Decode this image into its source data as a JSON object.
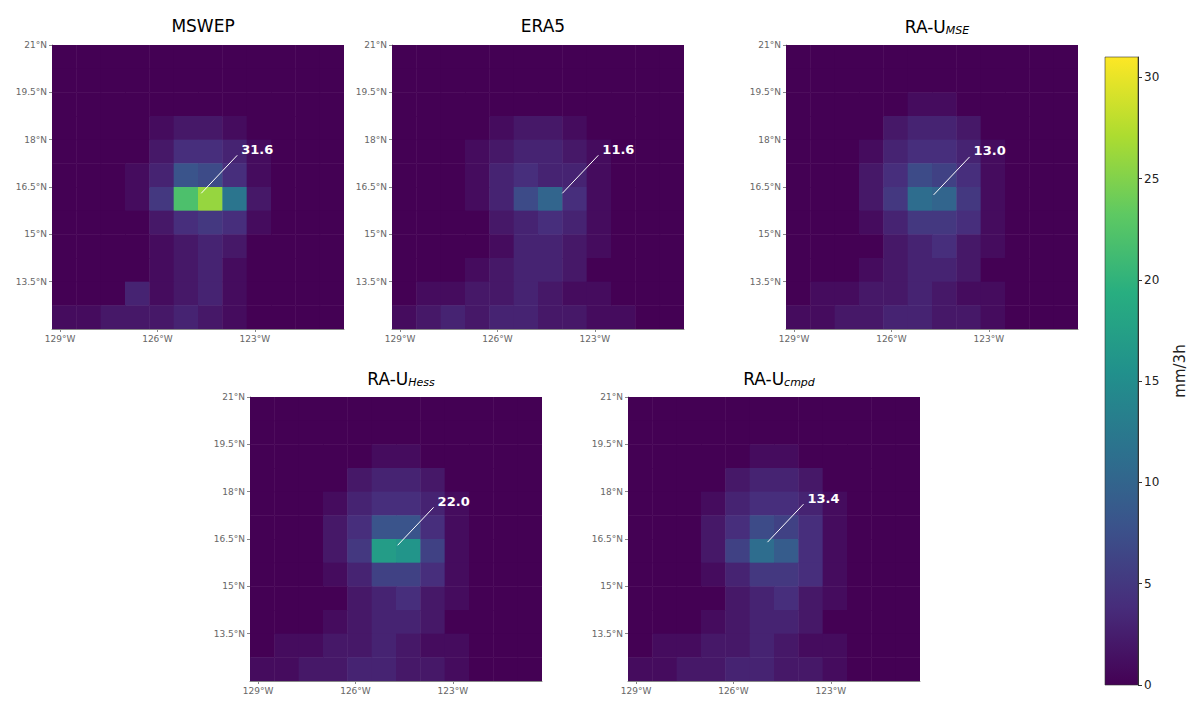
{
  "chart_data": [
    {
      "type": "heatmap",
      "title": "MSWEP",
      "xlim": [
        -129.25,
        -120.25
      ],
      "ylim": [
        12,
        21
      ],
      "xticks": [
        {
          "value": -129,
          "label": "129°W"
        },
        {
          "value": -126,
          "label": "126°W"
        },
        {
          "value": -123,
          "label": "123°W"
        }
      ],
      "yticks": [
        {
          "value": 13.5,
          "label": "13.5°N"
        },
        {
          "value": 15,
          "label": "15°N"
        },
        {
          "value": 16.5,
          "label": "16.5°N"
        },
        {
          "value": 18,
          "label": "18°N"
        },
        {
          "value": 19.5,
          "label": "19.5°N"
        },
        {
          "value": 21,
          "label": "21°N"
        }
      ],
      "lon_edges": [
        -129.25,
        -128.5,
        -127.75,
        -127,
        -126.25,
        -125.5,
        -124.75,
        -124,
        -123.25,
        -122.5,
        -121.75,
        -121,
        -120.25
      ],
      "lat_edges": [
        21,
        20.25,
        19.5,
        18.75,
        18,
        17.25,
        16.5,
        15.75,
        15,
        14.25,
        13.5,
        12.75,
        12
      ],
      "cells": [
        [
          0,
          0,
          0,
          0,
          0,
          0,
          0,
          0,
          0,
          0,
          0,
          0
        ],
        [
          0,
          0,
          0,
          0,
          0,
          0,
          0,
          0,
          0,
          0,
          0,
          0
        ],
        [
          0,
          0,
          0,
          0,
          0,
          0,
          0,
          0,
          0,
          0,
          0,
          0
        ],
        [
          0,
          0,
          0,
          0,
          1,
          2,
          2,
          1,
          0,
          0,
          0,
          0
        ],
        [
          0,
          0,
          0,
          0,
          2,
          4,
          4,
          3,
          1,
          0,
          0,
          0
        ],
        [
          0,
          0,
          0,
          1,
          3,
          8,
          7,
          4,
          1,
          0,
          0,
          0
        ],
        [
          0,
          0,
          0,
          1,
          5,
          22,
          26,
          12,
          2,
          0,
          0,
          0
        ],
        [
          0,
          0,
          0,
          0,
          2,
          4,
          5,
          4,
          1,
          0,
          0,
          0
        ],
        [
          0,
          0,
          0,
          0,
          1,
          2,
          3,
          2,
          0,
          0,
          0,
          0
        ],
        [
          0,
          0,
          0,
          0,
          1,
          2,
          3,
          1,
          0,
          0,
          0,
          0
        ],
        [
          0,
          0,
          0,
          3,
          1,
          2,
          3,
          1,
          0,
          0,
          0,
          0
        ],
        [
          1,
          1,
          2,
          2,
          2,
          3,
          2,
          1,
          0,
          0,
          0,
          0
        ]
      ],
      "annotation": {
        "text": "31.6",
        "lon": -124.65,
        "lat": 16.3
      }
    },
    {
      "type": "heatmap",
      "title": "ERA5",
      "xlim": [
        -129.25,
        -120.25
      ],
      "ylim": [
        12,
        21
      ],
      "xticks": [
        {
          "value": -129,
          "label": "129°W"
        },
        {
          "value": -126,
          "label": "126°W"
        },
        {
          "value": -123,
          "label": "123°W"
        }
      ],
      "yticks": [
        {
          "value": 13.5,
          "label": "13.5°N"
        },
        {
          "value": 15,
          "label": "15°N"
        },
        {
          "value": 16.5,
          "label": "16.5°N"
        },
        {
          "value": 18,
          "label": "18°N"
        },
        {
          "value": 19.5,
          "label": "19.5°N"
        },
        {
          "value": 21,
          "label": "21°N"
        }
      ],
      "lon_edges": [
        -129.25,
        -128.5,
        -127.75,
        -127,
        -126.25,
        -125.5,
        -124.75,
        -124,
        -123.25,
        -122.5,
        -121.75,
        -121,
        -120.25
      ],
      "lat_edges": [
        21,
        20.25,
        19.5,
        18.75,
        18,
        17.25,
        16.5,
        15.75,
        15,
        14.25,
        13.5,
        12.75,
        12
      ],
      "cells": [
        [
          0,
          0,
          0,
          0,
          0,
          0,
          0,
          0,
          0,
          0,
          0,
          0
        ],
        [
          0,
          0,
          0,
          0,
          0,
          0,
          0,
          0,
          0,
          0,
          0,
          0
        ],
        [
          0,
          0,
          0,
          0,
          0,
          0,
          0,
          0,
          0,
          0,
          0,
          0
        ],
        [
          0,
          0,
          0,
          0,
          1,
          2,
          2,
          1,
          0,
          0,
          0,
          0
        ],
        [
          0,
          0,
          0,
          1,
          2,
          3,
          3,
          2,
          1,
          0,
          0,
          0
        ],
        [
          0,
          0,
          0,
          1,
          3,
          4,
          3,
          3,
          1,
          0,
          0,
          0
        ],
        [
          0,
          0,
          0,
          1,
          3,
          7,
          10,
          4,
          1,
          0,
          0,
          0
        ],
        [
          0,
          0,
          0,
          0,
          2,
          3,
          4,
          3,
          1,
          0,
          0,
          0
        ],
        [
          0,
          0,
          0,
          0,
          1,
          3,
          3,
          2,
          1,
          0,
          0,
          0
        ],
        [
          0,
          0,
          0,
          1,
          2,
          3,
          3,
          2,
          0,
          0,
          0,
          0
        ],
        [
          0,
          1,
          1,
          2,
          2,
          3,
          2,
          1,
          1,
          0,
          0,
          0
        ],
        [
          1,
          2,
          3,
          2,
          3,
          3,
          2,
          2,
          1,
          1,
          0,
          0
        ]
      ],
      "annotation": {
        "text": "11.6",
        "lon": -124.0,
        "lat": 16.3
      }
    },
    {
      "type": "heatmap",
      "title": "RA-U",
      "subscript": "MSE",
      "xlim": [
        -129.25,
        -120.25
      ],
      "ylim": [
        12,
        21
      ],
      "xticks": [
        {
          "value": -129,
          "label": "129°W"
        },
        {
          "value": -126,
          "label": "126°W"
        },
        {
          "value": -123,
          "label": "123°W"
        }
      ],
      "yticks": [
        {
          "value": 13.5,
          "label": "13.5°N"
        },
        {
          "value": 15,
          "label": "15°N"
        },
        {
          "value": 16.5,
          "label": "16.5°N"
        },
        {
          "value": 18,
          "label": "18°N"
        },
        {
          "value": 19.5,
          "label": "19.5°N"
        },
        {
          "value": 21,
          "label": "21°N"
        }
      ],
      "lon_edges": [
        -129.25,
        -128.5,
        -127.75,
        -127,
        -126.25,
        -125.5,
        -124.75,
        -124,
        -123.25,
        -122.5,
        -121.75,
        -121,
        -120.25
      ],
      "lat_edges": [
        21,
        20.25,
        19.5,
        18.75,
        18,
        17.25,
        16.5,
        15.75,
        15,
        14.25,
        13.5,
        12.75,
        12
      ],
      "cells": [
        [
          0,
          0,
          0,
          0,
          0,
          0,
          0,
          0,
          0,
          0,
          0,
          0
        ],
        [
          0,
          0,
          0,
          0,
          0,
          0,
          0,
          0,
          0,
          0,
          0,
          0
        ],
        [
          0,
          0,
          0,
          0,
          0,
          1,
          1,
          0,
          0,
          0,
          0,
          0
        ],
        [
          0,
          0,
          0,
          0,
          2,
          3,
          3,
          2,
          0,
          0,
          0,
          0
        ],
        [
          0,
          0,
          0,
          1,
          3,
          4,
          4,
          3,
          1,
          0,
          0,
          0
        ],
        [
          0,
          0,
          0,
          2,
          4,
          7,
          6,
          4,
          1,
          0,
          0,
          0
        ],
        [
          0,
          0,
          0,
          2,
          5,
          11,
          10,
          5,
          1,
          0,
          0,
          0
        ],
        [
          0,
          0,
          0,
          1,
          3,
          5,
          5,
          4,
          1,
          0,
          0,
          0
        ],
        [
          0,
          0,
          0,
          0,
          2,
          3,
          4,
          2,
          1,
          0,
          0,
          0
        ],
        [
          0,
          0,
          0,
          1,
          2,
          3,
          3,
          2,
          0,
          0,
          0,
          0
        ],
        [
          0,
          1,
          1,
          2,
          2,
          3,
          2,
          1,
          1,
          0,
          0,
          0
        ],
        [
          1,
          1,
          2,
          2,
          3,
          3,
          2,
          2,
          1,
          0,
          0,
          0
        ]
      ],
      "annotation": {
        "text": "13.0",
        "lon": -124.7,
        "lat": 16.25
      }
    },
    {
      "type": "heatmap",
      "title": "RA-U",
      "subscript": "Hess",
      "xlim": [
        -129.25,
        -120.25
      ],
      "ylim": [
        12,
        21
      ],
      "xticks": [
        {
          "value": -129,
          "label": "129°W"
        },
        {
          "value": -126,
          "label": "126°W"
        },
        {
          "value": -123,
          "label": "123°W"
        }
      ],
      "yticks": [
        {
          "value": 13.5,
          "label": "13.5°N"
        },
        {
          "value": 15,
          "label": "15°N"
        },
        {
          "value": 16.5,
          "label": "16.5°N"
        },
        {
          "value": 18,
          "label": "18°N"
        },
        {
          "value": 19.5,
          "label": "19.5°N"
        },
        {
          "value": 21,
          "label": "21°N"
        }
      ],
      "lon_edges": [
        -129.25,
        -128.5,
        -127.75,
        -127,
        -126.25,
        -125.5,
        -124.75,
        -124,
        -123.25,
        -122.5,
        -121.75,
        -121,
        -120.25
      ],
      "lat_edges": [
        21,
        20.25,
        19.5,
        18.75,
        18,
        17.25,
        16.5,
        15.75,
        15,
        14.25,
        13.5,
        12.75,
        12
      ],
      "cells": [
        [
          0,
          0,
          0,
          0,
          0,
          0,
          0,
          0,
          0,
          0,
          0,
          0
        ],
        [
          0,
          0,
          0,
          0,
          0,
          0,
          0,
          0,
          0,
          0,
          0,
          0
        ],
        [
          0,
          0,
          0,
          0,
          0,
          1,
          1,
          0,
          0,
          0,
          0,
          0
        ],
        [
          0,
          0,
          0,
          0,
          2,
          3,
          3,
          2,
          0,
          0,
          0,
          0
        ],
        [
          0,
          0,
          0,
          1,
          3,
          4,
          4,
          3,
          1,
          0,
          0,
          0
        ],
        [
          0,
          0,
          0,
          2,
          4,
          8,
          8,
          4,
          1,
          0,
          0,
          0
        ],
        [
          0,
          0,
          0,
          2,
          5,
          17,
          16,
          6,
          1,
          0,
          0,
          0
        ],
        [
          0,
          0,
          0,
          1,
          3,
          6,
          6,
          4,
          1,
          0,
          0,
          0
        ],
        [
          0,
          0,
          0,
          0,
          2,
          3,
          4,
          2,
          1,
          0,
          0,
          0
        ],
        [
          0,
          0,
          0,
          1,
          2,
          3,
          3,
          2,
          0,
          0,
          0,
          0
        ],
        [
          0,
          1,
          1,
          2,
          2,
          3,
          2,
          1,
          1,
          0,
          0,
          0
        ],
        [
          1,
          1,
          2,
          2,
          3,
          3,
          2,
          2,
          1,
          0,
          0,
          0
        ]
      ],
      "annotation": {
        "text": "22.0",
        "lon": -124.7,
        "lat": 16.3
      }
    },
    {
      "type": "heatmap",
      "title": "RA-U",
      "subscript": "cmpd",
      "xlim": [
        -129.25,
        -120.25
      ],
      "ylim": [
        12,
        21
      ],
      "xticks": [
        {
          "value": -129,
          "label": "129°W"
        },
        {
          "value": -126,
          "label": "126°W"
        },
        {
          "value": -123,
          "label": "123°W"
        }
      ],
      "yticks": [
        {
          "value": 13.5,
          "label": "13.5°N"
        },
        {
          "value": 15,
          "label": "15°N"
        },
        {
          "value": 16.5,
          "label": "16.5°N"
        },
        {
          "value": 18,
          "label": "18°N"
        },
        {
          "value": 19.5,
          "label": "19.5°N"
        },
        {
          "value": 21,
          "label": "21°N"
        }
      ],
      "lon_edges": [
        -129.25,
        -128.5,
        -127.75,
        -127,
        -126.25,
        -125.5,
        -124.75,
        -124,
        -123.25,
        -122.5,
        -121.75,
        -121,
        -120.25
      ],
      "lat_edges": [
        21,
        20.25,
        19.5,
        18.75,
        18,
        17.25,
        16.5,
        15.75,
        15,
        14.25,
        13.5,
        12.75,
        12
      ],
      "cells": [
        [
          0,
          0,
          0,
          0,
          0,
          0,
          0,
          0,
          0,
          0,
          0,
          0
        ],
        [
          0,
          0,
          0,
          0,
          0,
          0,
          0,
          0,
          0,
          0,
          0,
          0
        ],
        [
          0,
          0,
          0,
          0,
          0,
          1,
          1,
          0,
          0,
          0,
          0,
          0
        ],
        [
          0,
          0,
          0,
          0,
          2,
          3,
          3,
          2,
          0,
          0,
          0,
          0
        ],
        [
          0,
          0,
          0,
          1,
          3,
          4,
          4,
          3,
          1,
          0,
          0,
          0
        ],
        [
          0,
          0,
          0,
          2,
          4,
          7,
          6,
          4,
          1,
          0,
          0,
          0
        ],
        [
          0,
          0,
          0,
          2,
          6,
          11,
          9,
          4,
          1,
          0,
          0,
          0
        ],
        [
          0,
          0,
          0,
          1,
          3,
          5,
          5,
          4,
          1,
          0,
          0,
          0
        ],
        [
          0,
          0,
          0,
          0,
          2,
          3,
          4,
          2,
          1,
          0,
          0,
          0
        ],
        [
          0,
          0,
          0,
          1,
          2,
          3,
          3,
          2,
          0,
          0,
          0,
          0
        ],
        [
          0,
          1,
          1,
          2,
          2,
          3,
          2,
          1,
          1,
          0,
          0,
          0
        ],
        [
          1,
          1,
          2,
          2,
          3,
          3,
          2,
          2,
          1,
          0,
          0,
          0
        ]
      ],
      "annotation": {
        "text": "13.4",
        "lon": -124.95,
        "lat": 16.4
      }
    }
  ],
  "colorbar": {
    "label": "mm/3h",
    "range": [
      0,
      31
    ],
    "ticks": [
      0,
      5,
      10,
      15,
      20,
      25,
      30
    ]
  }
}
